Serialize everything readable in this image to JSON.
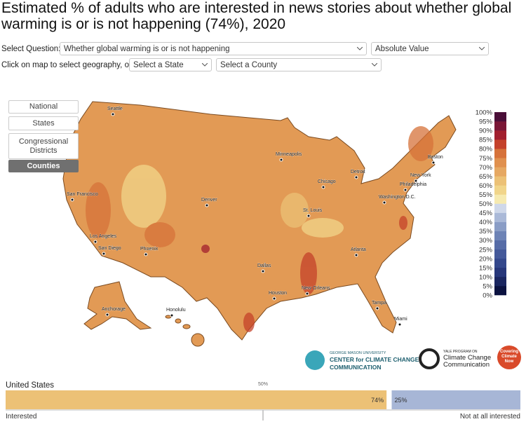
{
  "header": {
    "title": "Estimated % of adults who are interested in news stories about whether global warming is or is not happening (74%), 2020"
  },
  "controls": {
    "question_label": "Select Question:",
    "question": "Whether global warming is or is not happening",
    "mode": "Absolute Value",
    "geo_label": "Click on map to select geography, or:",
    "state": "Select a State",
    "county": "Select a County"
  },
  "geography_buttons": [
    "National",
    "States",
    "Congressional Districts",
    "Counties"
  ],
  "active_button": 3,
  "legend": {
    "labels": [
      "0%",
      "5%",
      "10%",
      "15%",
      "20%",
      "25%",
      "30%",
      "35%",
      "40%",
      "45%",
      "50%",
      "55%",
      "60%",
      "65%",
      "70%",
      "75%",
      "80%",
      "85%",
      "90%",
      "95%",
      "100%"
    ],
    "colors": [
      "#0b1240",
      "#1a2660",
      "#27377a",
      "#34488c",
      "#44599a",
      "#566ca7",
      "#6d83b6",
      "#8a9dc6",
      "#aab9d8",
      "#cfd8ea",
      "#f6eab0",
      "#f1d58a",
      "#ecc176",
      "#e6a862",
      "#e0904e",
      "#d6723a",
      "#c4412a",
      "#a21f2e",
      "#7a1636",
      "#4a0e38"
    ]
  },
  "cities": [
    "Seattle",
    "San Francisco",
    "Los Angeles",
    "San Diego",
    "Phoenix",
    "Denver",
    "Minneapolis",
    "Chicago",
    "Detroit",
    "St. Louis",
    "Dallas",
    "Houston",
    "New Orleans",
    "Atlanta",
    "Tampa",
    "Miami",
    "Washington D.C.",
    "Philadelphia",
    "New York",
    "Boston",
    "Anchorage",
    "Honolulu"
  ],
  "logos": {
    "gmu": [
      "GEORGE MASON UNIVERSITY",
      "CENTER for CLIMATE CHANGE",
      "COMMUNICATION"
    ],
    "yale": [
      "YALE PROGRAM ON",
      "Climate Change",
      "Communication"
    ],
    "ccn": [
      "Covering",
      "Climate",
      "Now"
    ]
  },
  "summary": {
    "region": "United States",
    "xlim": [
      0,
      100
    ],
    "marker": {
      "value": 50,
      "label": "50%"
    },
    "bars": [
      {
        "value": 74,
        "label": "74%",
        "color": "#ecc176"
      },
      {
        "value": 25,
        "label": "25%",
        "color": "#a7b6d6"
      }
    ],
    "left_label": "Interested",
    "right_label": "Not at all interested"
  }
}
